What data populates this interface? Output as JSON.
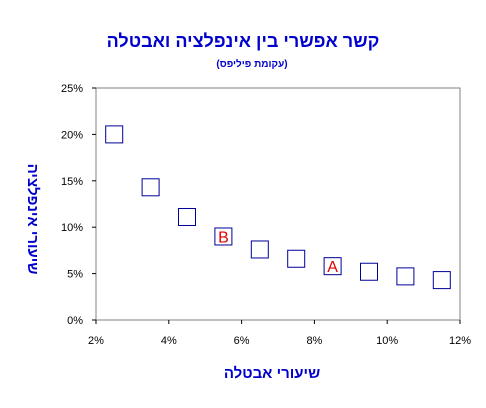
{
  "chart_data": {
    "type": "scatter",
    "title": "קשר אפשרי בין אינפלציה ואבטלה",
    "subtitle": "(עקומת פיליפס)",
    "xlabel": "שיעורי אבטלה",
    "ylabel": "שיעורי אינפלציה",
    "xlim": [
      0.02,
      0.12
    ],
    "ylim": [
      0,
      0.25
    ],
    "x_ticks": [
      "2%",
      "4%",
      "6%",
      "8%",
      "10%",
      "12%"
    ],
    "y_ticks": [
      "0%",
      "5%",
      "10%",
      "15%",
      "20%",
      "25%"
    ],
    "x_tick_values": [
      0.02,
      0.04,
      0.06,
      0.08,
      0.1,
      0.12
    ],
    "y_tick_values": [
      0,
      0.05,
      0.1,
      0.15,
      0.2,
      0.25
    ],
    "grid": false,
    "legend": "none",
    "points": [
      {
        "x": 0.025,
        "y": 0.2,
        "label": ""
      },
      {
        "x": 0.035,
        "y": 0.143,
        "label": ""
      },
      {
        "x": 0.045,
        "y": 0.111,
        "label": ""
      },
      {
        "x": 0.055,
        "y": 0.09,
        "label": "B"
      },
      {
        "x": 0.065,
        "y": 0.076,
        "label": ""
      },
      {
        "x": 0.075,
        "y": 0.066,
        "label": ""
      },
      {
        "x": 0.085,
        "y": 0.058,
        "label": "A"
      },
      {
        "x": 0.095,
        "y": 0.052,
        "label": ""
      },
      {
        "x": 0.105,
        "y": 0.047,
        "label": ""
      },
      {
        "x": 0.115,
        "y": 0.043,
        "label": ""
      }
    ]
  },
  "colors": {
    "title": "#0000cc",
    "axis_label": "#0000cc",
    "marker": "#000099",
    "point_label": "#e00000",
    "axis": "#808080",
    "tick_text": "#000000"
  }
}
